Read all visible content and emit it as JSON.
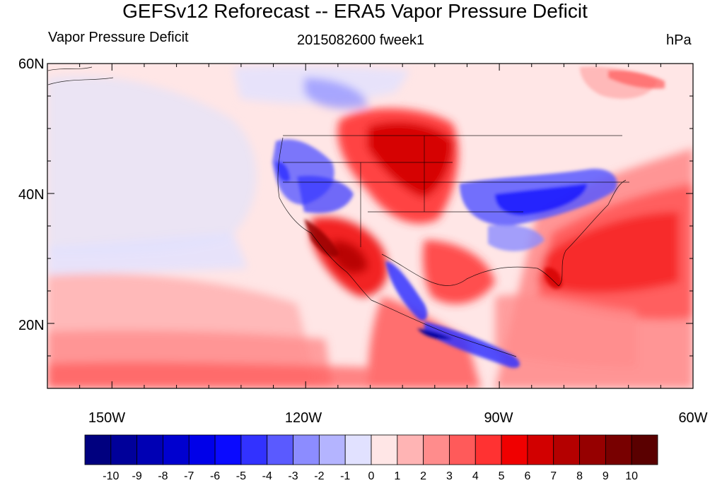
{
  "title": "GEFSv12 Reforecast -- ERA5 Vapor Pressure Deficit",
  "left_string": "Vapor Pressure Deficit",
  "center_string": "2015082600 fweek1",
  "right_string": "hPa",
  "map": {
    "lon_range": [
      -160,
      -60
    ],
    "lat_range": [
      10,
      60
    ],
    "lat_labels": [
      "60N",
      "40N",
      "20N"
    ],
    "lon_labels": [
      "150W",
      "120W",
      "90W",
      "60W"
    ],
    "projection": "cylindrical equidistant"
  },
  "colorbar": {
    "labels": [
      "-10",
      "-9",
      "-8",
      "-7",
      "-6",
      "-5",
      "-4",
      "-3",
      "-2",
      "-1",
      "0",
      "1",
      "2",
      "3",
      "4",
      "5",
      "6",
      "7",
      "8",
      "9",
      "10"
    ],
    "colors": [
      "#00007f",
      "#00009a",
      "#0000b4",
      "#0000cf",
      "#0000e9",
      "#0a0aff",
      "#3232ff",
      "#5a5aff",
      "#8c8cff",
      "#b4b4ff",
      "#e1e1ff",
      "#ffe6e6",
      "#ffb4b4",
      "#ff8c8c",
      "#ff5a5a",
      "#ff3232",
      "#f00000",
      "#d20000",
      "#b40000",
      "#960000",
      "#780000",
      "#5a0000"
    ]
  }
}
